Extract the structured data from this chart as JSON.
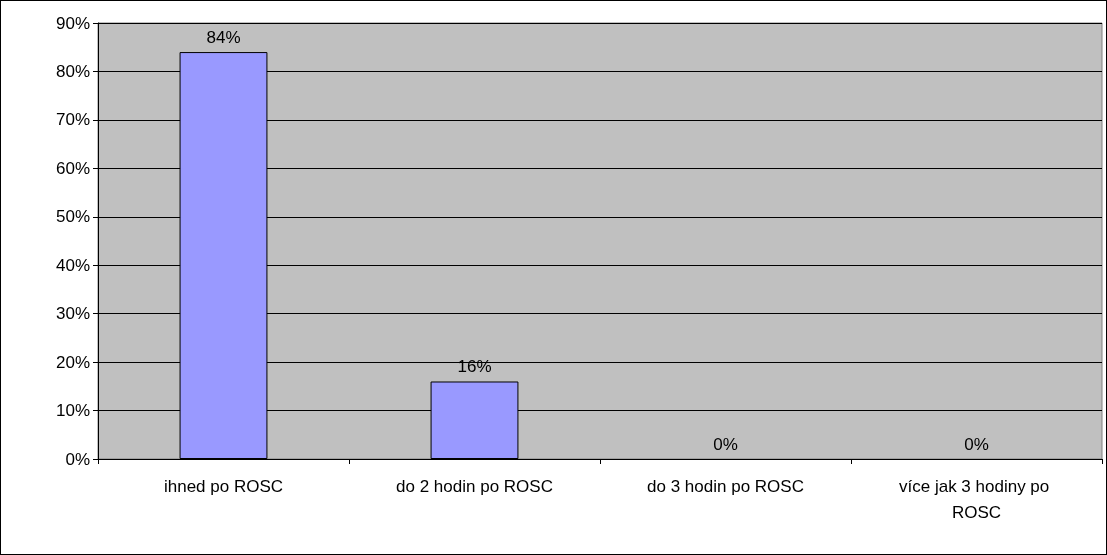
{
  "chart_data": {
    "type": "bar",
    "categories": [
      "ihned po ROSC",
      "do 2 hodin po ROSC",
      "do 3 hodin po ROSC",
      "více jak 3 hodiny po ROSC"
    ],
    "values": [
      84,
      16,
      0,
      0
    ],
    "value_labels": [
      "84%",
      "16%",
      "0%",
      "0%"
    ],
    "color": "#9999ff",
    "ylim": [
      0,
      90
    ],
    "yticks": [
      {
        "value": 0,
        "label": "0%"
      },
      {
        "value": 10,
        "label": "10%"
      },
      {
        "value": 20,
        "label": "20%"
      },
      {
        "value": 30,
        "label": "30%"
      },
      {
        "value": 40,
        "label": "40%"
      },
      {
        "value": 50,
        "label": "50%"
      },
      {
        "value": 60,
        "label": "60%"
      },
      {
        "value": 70,
        "label": "70%"
      },
      {
        "value": 80,
        "label": "80%"
      },
      {
        "value": 90,
        "label": "90%"
      }
    ],
    "grid": "y"
  }
}
